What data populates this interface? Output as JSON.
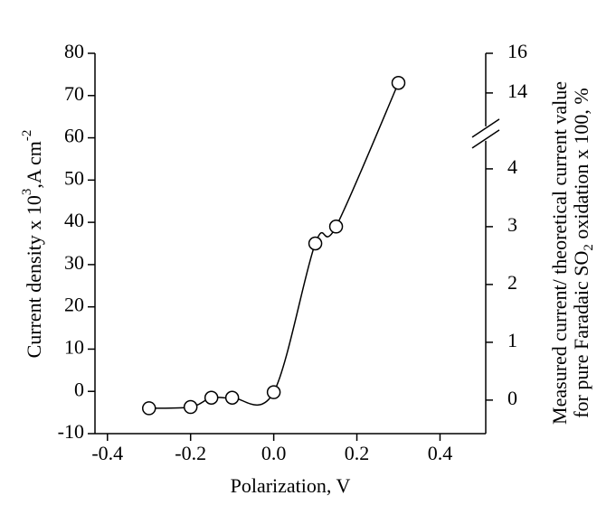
{
  "chart_data": {
    "type": "line",
    "xlabel": "Polarization, V",
    "ylabel_parts": [
      "Current density x 10",
      "3",
      ",A cm",
      "-2"
    ],
    "y2label_line1": "Measured current/ theoretical current value",
    "y2label_line2_parts": [
      "for pure Faradaic SO",
      "2",
      " oxidation x 100, %"
    ],
    "x": [
      -0.3,
      -0.2,
      -0.15,
      -0.1,
      0.0,
      0.1,
      0.15,
      0.3
    ],
    "series": [
      {
        "color": "#000000",
        "values": [
          -4,
          -3.7,
          -1.5,
          -1.5,
          -0.2,
          35,
          39,
          73
        ]
      }
    ],
    "xlim": [
      -0.43,
      0.51
    ],
    "ylim": [
      -10,
      80
    ],
    "xticks": [
      -0.4,
      -0.2,
      {
        "value": 0,
        "label": "0.0"
      },
      0.2,
      0.4
    ],
    "yticks": [
      -10,
      0,
      10,
      20,
      30,
      40,
      50,
      60,
      70,
      80
    ],
    "y2_segments": [
      {
        "ylim": [
          -10,
          61
        ],
        "y2lim": [
          -0.58,
          4.61
        ],
        "y2ticks": [
          0,
          1,
          2,
          3,
          4
        ]
      },
      {
        "ylim": [
          61,
          80
        ],
        "y2lim": [
          11.95,
          16
        ],
        "y2ticks": [
          14,
          16
        ]
      }
    ],
    "marker": "open-circle"
  }
}
